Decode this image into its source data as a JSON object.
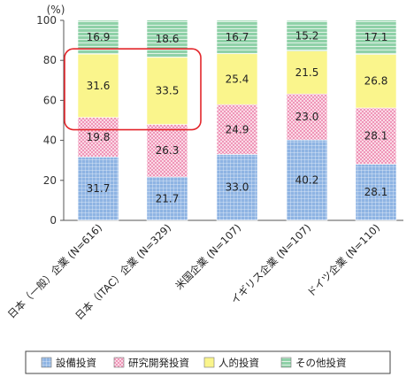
{
  "chart_data": {
    "type": "bar",
    "stacked": true,
    "unit_label": "(%)",
    "ylim": [
      0,
      100
    ],
    "yticks": [
      0,
      20,
      40,
      60,
      80,
      100
    ],
    "categories": [
      "日本（一般）企業 (N=616)",
      "日本（ITAC）企業 (N=329)",
      "米国企業 (N=107)",
      "イギリス企業 (N=107)",
      "ドイツ企業 (N=110)"
    ],
    "series": [
      {
        "name": "設備投資",
        "values": [
          31.7,
          21.7,
          33.0,
          40.2,
          28.1
        ],
        "labels": [
          "31.7",
          "21.7",
          "33.0",
          "40.2",
          "28.1"
        ],
        "color": "#8eb4e3",
        "pattern": "grid"
      },
      {
        "name": "研究開発投資",
        "values": [
          19.8,
          26.3,
          24.9,
          23.0,
          28.1
        ],
        "labels": [
          "19.8",
          "26.3",
          "24.9",
          "23.0",
          "28.1"
        ],
        "color": "#f4b6cc",
        "pattern": "cross"
      },
      {
        "name": "人的投資",
        "values": [
          31.6,
          33.5,
          25.4,
          21.5,
          26.8
        ],
        "labels": [
          "31.6",
          "33.5",
          "25.4",
          "21.5",
          "26.8"
        ],
        "color": "#faf58c",
        "pattern": "solid"
      },
      {
        "name": "その他投資",
        "values": [
          16.9,
          18.6,
          16.7,
          15.2,
          17.1
        ],
        "labels": [
          "16.9",
          "18.6",
          "16.7",
          "15.2",
          "17.1"
        ],
        "color": "#8fd1a8",
        "pattern": "hstripe"
      }
    ],
    "highlight": {
      "series": "人的投資",
      "categories": [
        0,
        1
      ],
      "color": "#e3262b"
    },
    "grid": false,
    "legend": "bottom"
  }
}
